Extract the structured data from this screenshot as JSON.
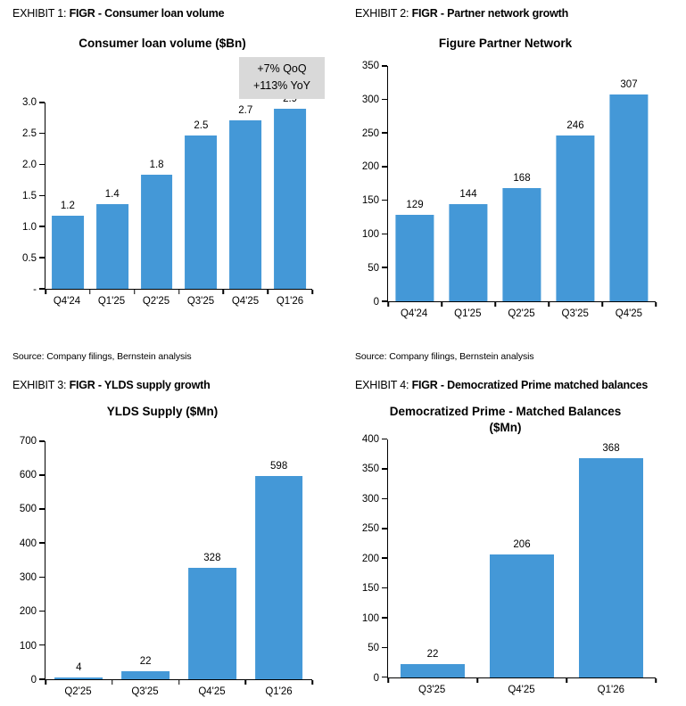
{
  "colors": {
    "bar": "#4498D7",
    "axis": "#000000",
    "annotation_bg": "#D9D9D9",
    "text": "#000000",
    "background": "#FFFFFF"
  },
  "exhibits": [
    {
      "prefix": "EXHIBIT 1:",
      "title": "FIGR - Consumer loan volume",
      "source": "Source: Company filings, Bernstein analysis"
    },
    {
      "prefix": "EXHIBIT 2:",
      "title": "FIGR - Partner network growth",
      "source": "Source: Company filings, Bernstein analysis"
    },
    {
      "prefix": "EXHIBIT 3:",
      "title": "FIGR - YLDS supply growth"
    },
    {
      "prefix": "EXHIBIT 4:",
      "title": "FIGR - Democratized Prime matched balances"
    }
  ],
  "chart_data": [
    {
      "type": "bar",
      "title": "Consumer loan volume ($Bn)",
      "categories": [
        "Q4'24",
        "Q1'25",
        "Q2'25",
        "Q3'25",
        "Q4'25",
        "Q1'26"
      ],
      "values": [
        1.17,
        1.36,
        1.83,
        2.47,
        2.71,
        2.9
      ],
      "value_labels": [
        "1.2",
        "1.4",
        "1.8",
        "2.5",
        "2.7",
        "2.9"
      ],
      "ylim": [
        0,
        3.0
      ],
      "y_max": 3.0,
      "y_ticks": [
        "3.0",
        "2.5",
        "2.0",
        "1.5",
        "1.0",
        "0.5",
        "-"
      ],
      "grid": false,
      "legend": false,
      "annotation": [
        "+7% QoQ",
        "+113% YoY"
      ],
      "xlabel": "",
      "ylabel": ""
    },
    {
      "type": "bar",
      "title": "Figure Partner Network",
      "categories": [
        "Q4'24",
        "Q1'25",
        "Q2'25",
        "Q3'25",
        "Q4'25"
      ],
      "values": [
        129,
        144,
        168,
        246,
        307
      ],
      "value_labels": [
        "129",
        "144",
        "168",
        "246",
        "307"
      ],
      "ylim": [
        0,
        350
      ],
      "y_max": 350,
      "y_ticks": [
        "350",
        "300",
        "250",
        "200",
        "150",
        "100",
        "50",
        "0"
      ],
      "grid": false,
      "legend": false,
      "xlabel": "",
      "ylabel": ""
    },
    {
      "type": "bar",
      "title": "YLDS Supply ($Mn)",
      "categories": [
        "Q2'25",
        "Q3'25",
        "Q4'25",
        "Q1'26"
      ],
      "values": [
        4,
        22,
        328,
        598
      ],
      "value_labels": [
        "4",
        "22",
        "328",
        "598"
      ],
      "ylim": [
        0,
        700
      ],
      "y_max": 700,
      "y_ticks": [
        "700",
        "600",
        "500",
        "400",
        "300",
        "200",
        "100",
        "0"
      ],
      "grid": false,
      "legend": false,
      "xlabel": "",
      "ylabel": ""
    },
    {
      "type": "bar",
      "title": "Democratized Prime - Matched Balances",
      "title_line2": "($Mn)",
      "categories": [
        "Q3'25",
        "Q4'25",
        "Q1'26"
      ],
      "values": [
        22,
        206,
        368
      ],
      "value_labels": [
        "22",
        "206",
        "368"
      ],
      "ylim": [
        0,
        400
      ],
      "y_max": 400,
      "y_ticks": [
        "400",
        "350",
        "300",
        "250",
        "200",
        "150",
        "100",
        "50",
        "0"
      ],
      "grid": false,
      "legend": false,
      "xlabel": "",
      "ylabel": ""
    }
  ]
}
